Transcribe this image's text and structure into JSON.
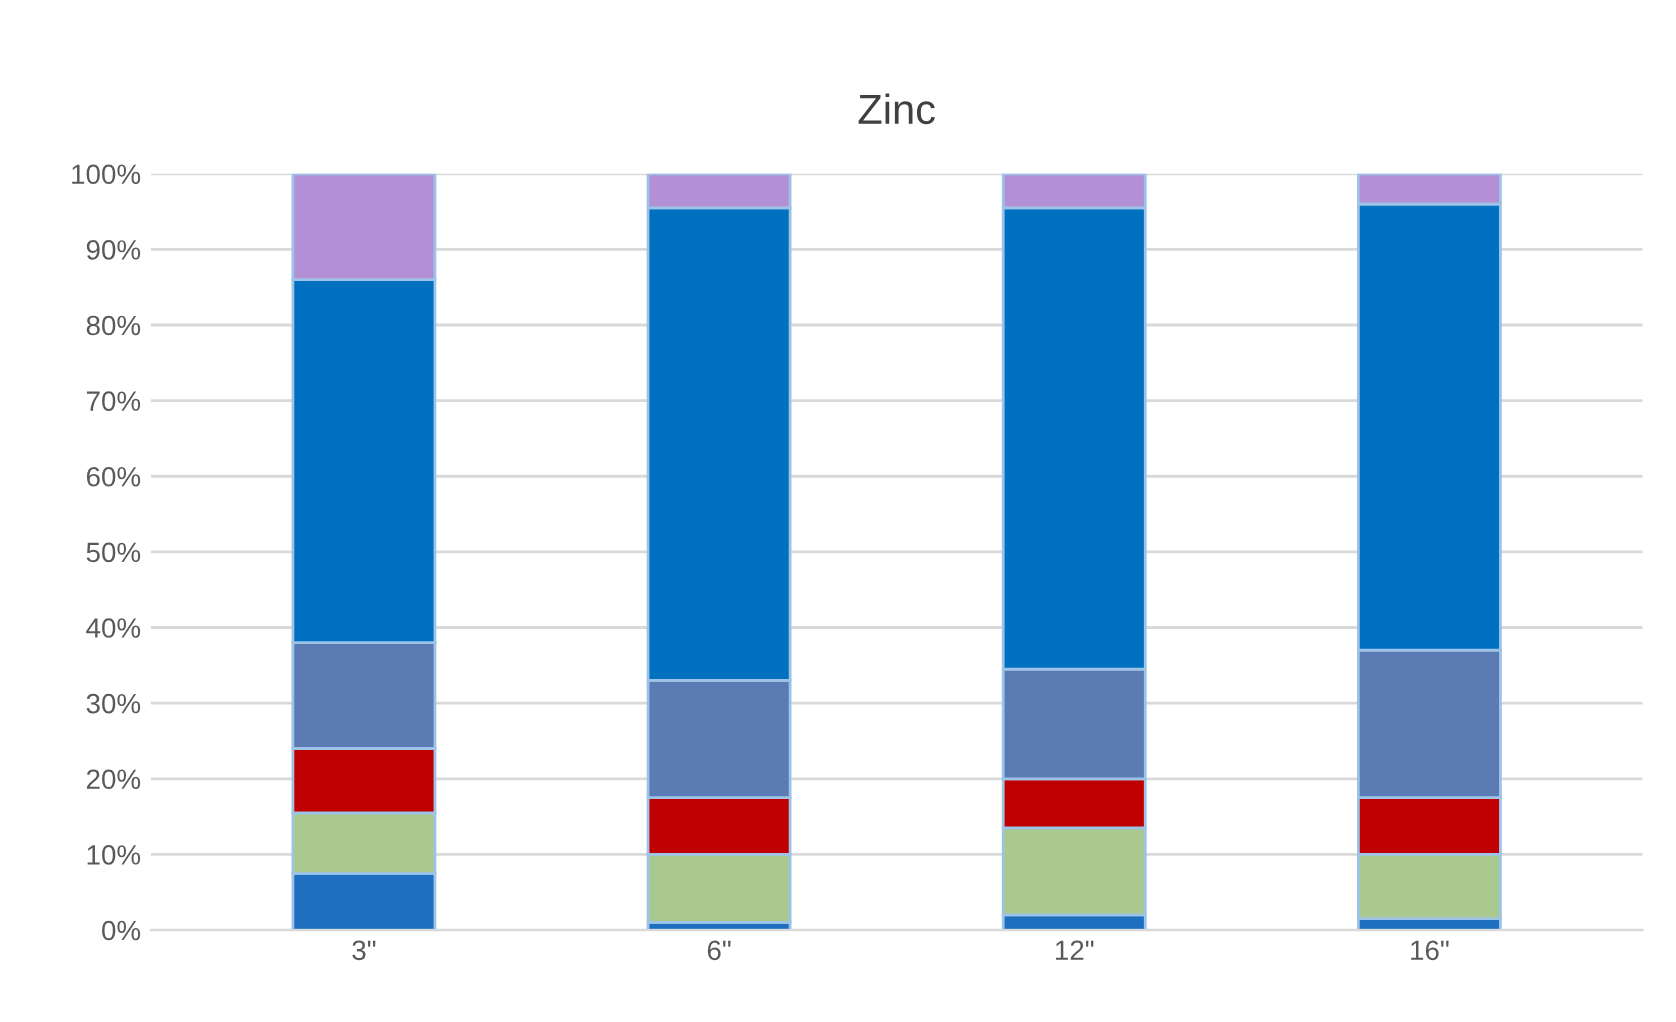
{
  "chart_data": {
    "type": "bar",
    "title": "Zinc",
    "stacked": true,
    "categories": [
      "3\"",
      "6\"",
      "12\"",
      "16\""
    ],
    "series": [
      {
        "color": "#1f6fc0",
        "values": [
          7.5,
          1,
          2,
          1.5
        ]
      },
      {
        "color": "#a9c98f",
        "values": [
          8,
          9,
          11.5,
          8.5
        ]
      },
      {
        "color": "#c00000",
        "values": [
          8.5,
          7.5,
          6.5,
          7.5
        ]
      },
      {
        "color": "#5b7bb5",
        "values": [
          14,
          15.5,
          14.5,
          19.5
        ]
      },
      {
        "color": "#0070c0",
        "values": [
          48,
          62.5,
          61,
          59
        ]
      },
      {
        "color": "#b38fd6",
        "values": [
          14,
          4.5,
          4.5,
          4
        ]
      }
    ],
    "ylim": [
      0,
      100
    ],
    "yticks": [
      {
        "value": 0,
        "label": "0%"
      },
      {
        "value": 10,
        "label": "10%"
      },
      {
        "value": 20,
        "label": "20%"
      },
      {
        "value": 30,
        "label": "30%"
      },
      {
        "value": 40,
        "label": "40%"
      },
      {
        "value": 50,
        "label": "50%"
      },
      {
        "value": 60,
        "label": "60%"
      },
      {
        "value": 70,
        "label": "70%"
      },
      {
        "value": 80,
        "label": "80%"
      },
      {
        "value": 90,
        "label": "90%"
      },
      {
        "value": 100,
        "label": "100%"
      }
    ],
    "grid": "y",
    "legend": false
  }
}
